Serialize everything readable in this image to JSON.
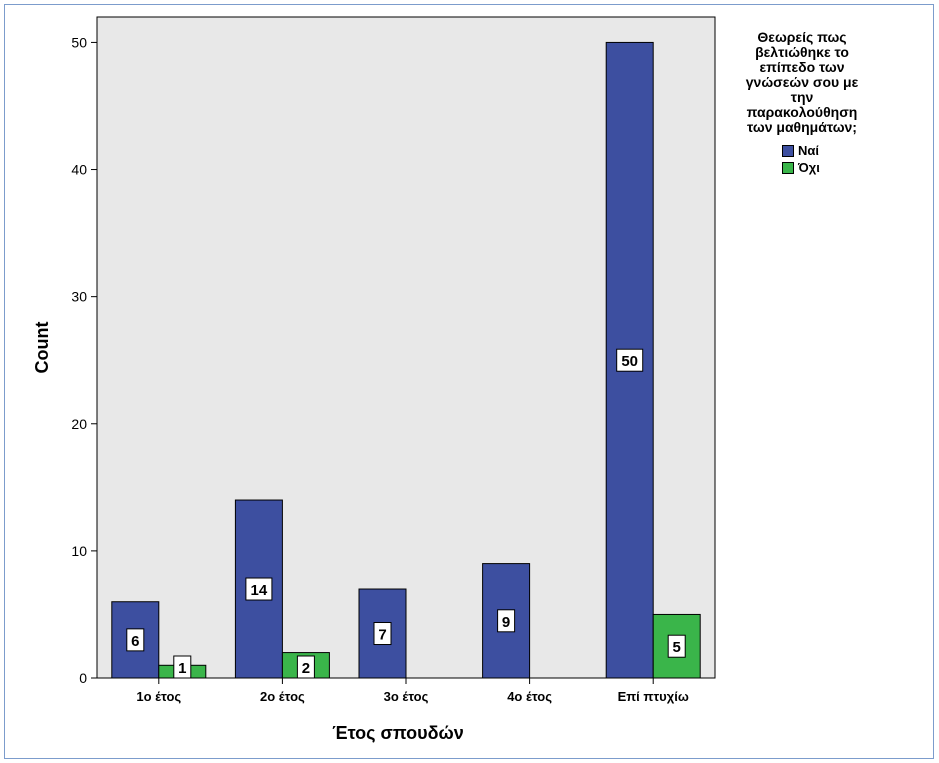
{
  "chart_data": {
    "type": "bar",
    "categories": [
      "1ο έτος",
      "2ο έτος",
      "3ο έτος",
      "4ο έτος",
      "Επί πτυχίω"
    ],
    "series": [
      {
        "name": "Ναί",
        "values": [
          6,
          14,
          7,
          9,
          50
        ],
        "color": "#3d4fa0"
      },
      {
        "name": "Όχι",
        "values": [
          1,
          2,
          null,
          null,
          5
        ],
        "color": "#3ab54a"
      }
    ],
    "xlabel": "Έτος σπουδών",
    "ylabel": "Count",
    "ylim": [
      0,
      52
    ],
    "yticks": [
      "0",
      "10",
      "20",
      "30",
      "40",
      "50"
    ],
    "legend_title": "Θεωρείς πως\nβελτιώθηκε το\nεπίπεδο των\nγνώσεών σου με\nτην\nπαρακολούθηση\nτων μαθημάτων;",
    "legend_position": "right",
    "plot_background": "#e8e8e8",
    "data_labels": true,
    "grid": false
  }
}
